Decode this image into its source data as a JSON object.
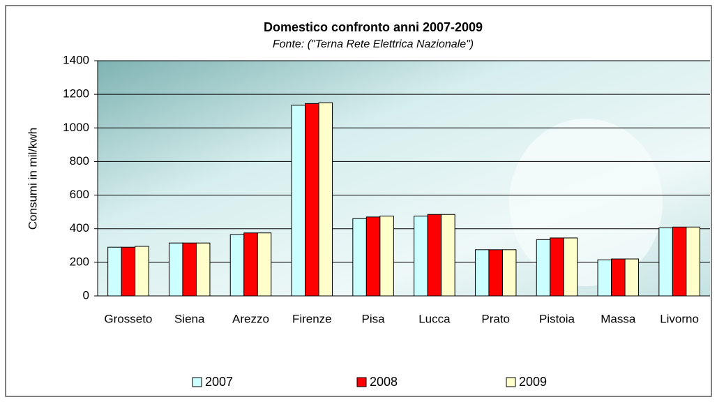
{
  "chart_data": {
    "type": "bar",
    "title": "Domestico confronto anni 2007-2009",
    "subtitle": "Fonte: (\"Terna Rete Elettrica Nazionale\")",
    "y_label": "Consumi in mil/kwh",
    "categories": [
      "Grosseto",
      "Siena",
      "Arezzo",
      "Firenze",
      "Pisa",
      "Lucca",
      "Prato",
      "Pistoia",
      "Massa",
      "Livorno"
    ],
    "series": [
      {
        "name": "2007",
        "color": "#ccffff",
        "values": [
          290,
          315,
          365,
          1135,
          460,
          475,
          275,
          335,
          215,
          405
        ]
      },
      {
        "name": "2008",
        "color": "#ff0000",
        "values": [
          290,
          315,
          375,
          1145,
          470,
          485,
          275,
          345,
          220,
          410
        ]
      },
      {
        "name": "2009",
        "color": "#ffffcc",
        "values": [
          295,
          315,
          375,
          1150,
          475,
          485,
          275,
          345,
          220,
          410
        ]
      }
    ],
    "ylim": [
      0,
      1400
    ],
    "yticks": [
      0,
      200,
      400,
      600,
      800,
      1000,
      1200,
      1400
    ],
    "grid": true,
    "legend": "bottom"
  }
}
